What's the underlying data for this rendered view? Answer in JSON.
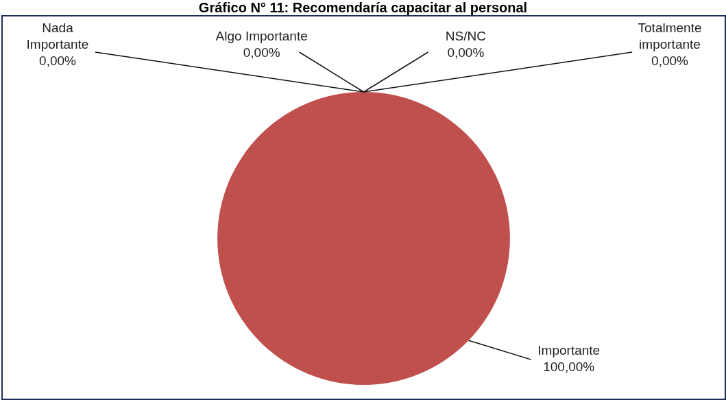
{
  "chart_data": {
    "type": "pie",
    "title": "Gráfico N° 11: Recomendaría capacitar al personal",
    "categories": [
      "Nada Importante",
      "Algo Importante",
      "NS/NC",
      "Totalmente importante",
      "Importante"
    ],
    "values": [
      0,
      0,
      0,
      0,
      100
    ],
    "colors": [
      "#4f81bd",
      "#9bbb59",
      "#8064a2",
      "#4bacc6",
      "#c0504d"
    ],
    "value_labels": [
      "0,00%",
      "0,00%",
      "0,00%",
      "0,00%",
      "100,00%"
    ],
    "legend": false
  }
}
